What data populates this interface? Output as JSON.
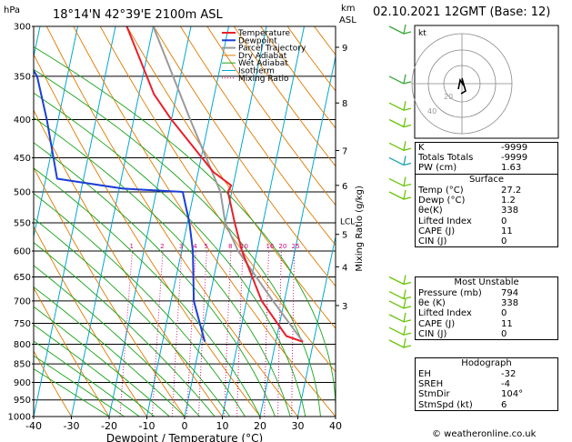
{
  "header": {
    "location": "18°14'N  42°39'E  2100m  ASL",
    "date": "02.10.2021  12GMT  (Base: 12)",
    "hpa_label": "hPa",
    "km_label": "km",
    "asl_label": "ASL"
  },
  "chart_data": {
    "type": "skew-t log-p",
    "xlabel": "Dewpoint / Temperature (°C)",
    "ylabel_right": "Mixing Ratio (g/kg)",
    "x_ticks": [
      -40,
      -30,
      -20,
      -10,
      0,
      10,
      20,
      30,
      40
    ],
    "pressure_levels": [
      300,
      350,
      400,
      450,
      500,
      550,
      600,
      650,
      700,
      750,
      800,
      850,
      900,
      950,
      1000
    ],
    "height_km_ticks": [
      {
        "p": 320,
        "label": "9"
      },
      {
        "p": 380,
        "label": "8"
      },
      {
        "p": 440,
        "label": "7"
      },
      {
        "p": 490,
        "label": "6"
      },
      {
        "p": 570,
        "label": "5"
      },
      {
        "p": 630,
        "label": "4"
      },
      {
        "p": 710,
        "label": "3"
      }
    ],
    "lcl_label": "LCL",
    "mixing_ratio_labels": [
      "1",
      "2",
      "3",
      "4",
      "5",
      "8",
      "10",
      "16",
      "20",
      "25"
    ],
    "legend": [
      "Temperature",
      "Dewpoint",
      "Parcel Trajectory",
      "Dry Adiabat",
      "Wet Adiabat",
      "Isotherm",
      "Mixing Ratio"
    ],
    "colors": {
      "temperature": "#e8202a",
      "dewpoint": "#1c3fd6",
      "parcel": "#9a9a9a",
      "dry_adiabat": "#e07a00",
      "wet_adiabat": "#1aa31a",
      "isotherm": "#00a8d0",
      "mixing_ratio": "#d0007a"
    },
    "temperature": [
      {
        "p": 794,
        "t": 27.2
      },
      {
        "p": 780,
        "t": 22.5
      },
      {
        "p": 700,
        "t": 14
      },
      {
        "p": 600,
        "t": 6
      },
      {
        "p": 550,
        "t": 2.5
      },
      {
        "p": 500,
        "t": -1
      },
      {
        "p": 490,
        "t": -0.5
      },
      {
        "p": 470,
        "t": -6
      },
      {
        "p": 400,
        "t": -20
      },
      {
        "p": 370,
        "t": -26
      },
      {
        "p": 300,
        "t": -37
      }
    ],
    "dewpoint": [
      {
        "p": 794,
        "t": 1.2
      },
      {
        "p": 700,
        "t": -4
      },
      {
        "p": 600,
        "t": -7
      },
      {
        "p": 550,
        "t": -9.5
      },
      {
        "p": 500,
        "t": -13
      },
      {
        "p": 495,
        "t": -29
      },
      {
        "p": 480,
        "t": -47
      },
      {
        "p": 400,
        "t": -53
      },
      {
        "p": 350,
        "t": -58
      },
      {
        "p": 300,
        "t": -69
      }
    ],
    "parcel": [
      {
        "p": 794,
        "t": 27.2
      },
      {
        "p": 700,
        "t": 17
      },
      {
        "p": 600,
        "t": 5
      },
      {
        "p": 550,
        "t": 0
      },
      {
        "p": 500,
        "t": -3
      },
      {
        "p": 400,
        "t": -15
      },
      {
        "p": 300,
        "t": -30
      }
    ]
  },
  "hodograph": {
    "unit_label": "kt",
    "ring_labels": [
      "20",
      "40"
    ]
  },
  "indices": {
    "rows": [
      {
        "label": "K",
        "value": "-9999"
      },
      {
        "label": "Totals Totals",
        "value": "-9999"
      },
      {
        "label": "PW (cm)",
        "value": "1.63"
      }
    ]
  },
  "surface": {
    "title": "Surface",
    "rows": [
      {
        "label": "Temp (°C)",
        "value": "27.2"
      },
      {
        "label": "Dewp (°C)",
        "value": "1.2"
      },
      {
        "label": "θe(K)",
        "value": "338"
      },
      {
        "label": "Lifted Index",
        "value": "0"
      },
      {
        "label": "CAPE (J)",
        "value": "11"
      },
      {
        "label": "CIN (J)",
        "value": "0"
      }
    ]
  },
  "most_unstable": {
    "title": "Most Unstable",
    "rows": [
      {
        "label": "Pressure (mb)",
        "value": "794"
      },
      {
        "label": "θe (K)",
        "value": "338"
      },
      {
        "label": "Lifted Index",
        "value": "0"
      },
      {
        "label": "CAPE (J)",
        "value": "11"
      },
      {
        "label": "CIN (J)",
        "value": "0"
      }
    ]
  },
  "hodo_table": {
    "title": "Hodograph",
    "rows": [
      {
        "label": "EH",
        "value": "-32"
      },
      {
        "label": "SREH",
        "value": "-4"
      },
      {
        "label": "StmDir",
        "value": "104°"
      },
      {
        "label": "StmSpd (kt)",
        "value": "6"
      }
    ]
  },
  "credit": "© weatheronline.co.uk"
}
